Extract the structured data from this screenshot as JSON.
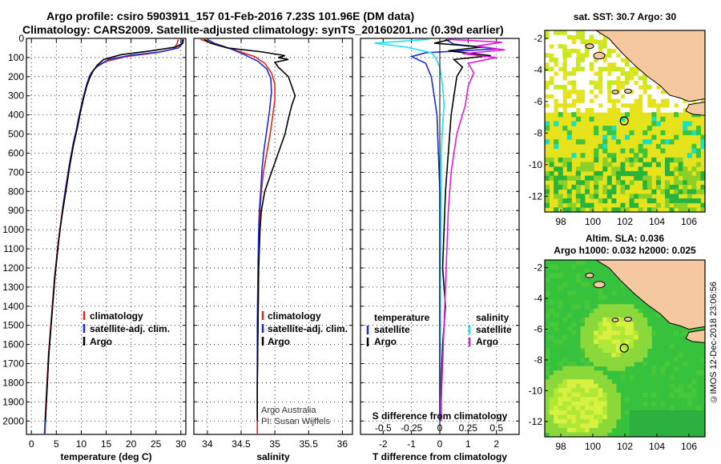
{
  "header": {
    "title_line1": "Argo profile: csiro 5903911_157 01-Feb-2016 7.23S 101.96E (DM data)",
    "title_line2": "Climatology: CARS2009. Satellite-adjusted climatology: synTS_20160201.nc (0.39d earlier)"
  },
  "colors": {
    "climatology": "#e8241a",
    "satellite": "#1a2cd8",
    "argo": "#000000",
    "sat_T": "#1a2cd8",
    "sat_S": "#19e4f0",
    "argo_S": "#e81ad6",
    "land": "#f5c8a0",
    "ocean_low": "#4cc84c",
    "ocean_mid": "#e8e21a"
  },
  "footer": {
    "credit": "©IMOS 12-Dec-2018 23:06:56"
  },
  "chart_data": [
    {
      "type": "line",
      "panel": "temperature",
      "xlabel": "temperature (deg C)",
      "ylabel": "",
      "xlim": [
        -1,
        31
      ],
      "ylim": [
        2070,
        0
      ],
      "xticks": [
        0,
        5,
        10,
        15,
        20,
        25,
        30
      ],
      "yticks": [
        0,
        100,
        200,
        300,
        400,
        500,
        600,
        700,
        800,
        900,
        1000,
        1100,
        1200,
        1300,
        1400,
        1500,
        1600,
        1700,
        1800,
        1900,
        2000
      ],
      "grid": "dotted",
      "legend": {
        "placement": "lower-middle",
        "entries": [
          "climatology",
          "satellite-adj. clim.",
          "Argo"
        ]
      },
      "series": [
        {
          "name": "climatology",
          "color": "#e8241a",
          "points": [
            [
              29.5,
              5
            ],
            [
              29.2,
              30
            ],
            [
              28.5,
              55
            ],
            [
              25,
              75
            ],
            [
              19,
              95
            ],
            [
              15,
              120
            ],
            [
              13,
              150
            ],
            [
              12,
              180
            ],
            [
              11.5,
              210
            ],
            [
              10.9,
              260
            ],
            [
              10.2,
              330
            ],
            [
              9.6,
              400
            ],
            [
              9.0,
              480
            ],
            [
              8.3,
              560
            ],
            [
              7.6,
              660
            ],
            [
              7.0,
              760
            ],
            [
              6.4,
              860
            ],
            [
              5.9,
              960
            ],
            [
              5.4,
              1060
            ],
            [
              5.0,
              1160
            ],
            [
              4.6,
              1260
            ],
            [
              4.3,
              1360
            ],
            [
              4.0,
              1460
            ],
            [
              3.7,
              1560
            ],
            [
              3.4,
              1660
            ],
            [
              3.2,
              1760
            ],
            [
              3.0,
              1860
            ],
            [
              2.8,
              1960
            ],
            [
              2.6,
              2070
            ]
          ]
        },
        {
          "name": "satellite-adj. clim.",
          "color": "#1a2cd8",
          "points": [
            [
              30.3,
              5
            ],
            [
              30.2,
              30
            ],
            [
              29.5,
              50
            ],
            [
              26,
              70
            ],
            [
              20,
              88
            ],
            [
              15.5,
              110
            ],
            [
              13.5,
              140
            ],
            [
              12.3,
              170
            ],
            [
              11.6,
              200
            ],
            [
              11.0,
              250
            ],
            [
              10.3,
              320
            ],
            [
              9.7,
              390
            ],
            [
              9.1,
              470
            ],
            [
              8.4,
              550
            ],
            [
              7.7,
              650
            ],
            [
              7.1,
              750
            ],
            [
              6.5,
              850
            ],
            [
              6.0,
              950
            ],
            [
              5.5,
              1050
            ],
            [
              5.1,
              1150
            ],
            [
              4.7,
              1250
            ],
            [
              4.4,
              1350
            ],
            [
              4.1,
              1450
            ],
            [
              3.8,
              1550
            ],
            [
              3.5,
              1650
            ],
            [
              3.3,
              1750
            ],
            [
              3.1,
              1850
            ],
            [
              2.9,
              1950
            ],
            [
              2.7,
              2070
            ]
          ]
        },
        {
          "name": "Argo",
          "color": "#000000",
          "points": [
            [
              30.5,
              5
            ],
            [
              30.4,
              25
            ],
            [
              29,
              45
            ],
            [
              24,
              65
            ],
            [
              18,
              85
            ],
            [
              14.5,
              110
            ],
            [
              13.2,
              140
            ],
            [
              12.4,
              170
            ],
            [
              11.8,
              200
            ],
            [
              11.1,
              250
            ],
            [
              10.4,
              320
            ],
            [
              9.8,
              390
            ],
            [
              9.2,
              470
            ],
            [
              8.5,
              550
            ],
            [
              7.8,
              650
            ],
            [
              7.2,
              750
            ],
            [
              6.6,
              850
            ],
            [
              6.0,
              950
            ],
            [
              5.5,
              1050
            ],
            [
              5.1,
              1150
            ],
            [
              4.7,
              1250
            ],
            [
              4.4,
              1350
            ],
            [
              4.1,
              1450
            ],
            [
              3.8,
              1550
            ],
            [
              3.5,
              1650
            ],
            [
              3.3,
              1750
            ],
            [
              3.1,
              1850
            ],
            [
              2.9,
              1950
            ],
            [
              2.8,
              2000
            ]
          ]
        }
      ]
    },
    {
      "type": "line",
      "panel": "salinity",
      "xlabel": "salinity",
      "ylabel": "",
      "xlim": [
        33.8,
        36.15
      ],
      "ylim": [
        2070,
        0
      ],
      "xticks": [
        34,
        34.5,
        35,
        35.5,
        36
      ],
      "xticklabels": [
        "34",
        "34.5",
        "35",
        "35.5",
        "36"
      ],
      "grid": "dotted",
      "legend": {
        "placement": "lower-right",
        "entries": [
          "climatology",
          "satellite-adj. clim.",
          "Argo"
        ]
      },
      "annotation": [
        "Argo Australia",
        "PI: Susan Wijffels"
      ],
      "series": [
        {
          "name": "climatology",
          "color": "#e8241a",
          "points": [
            [
              33.9,
              5
            ],
            [
              34.1,
              30
            ],
            [
              34.4,
              60
            ],
            [
              34.7,
              95
            ],
            [
              34.85,
              130
            ],
            [
              34.95,
              180
            ],
            [
              35.0,
              240
            ],
            [
              35.0,
              320
            ],
            [
              34.97,
              400
            ],
            [
              34.93,
              500
            ],
            [
              34.88,
              600
            ],
            [
              34.83,
              700
            ],
            [
              34.8,
              800
            ],
            [
              34.78,
              900
            ],
            [
              34.77,
              1000
            ],
            [
              34.76,
              1200
            ],
            [
              34.75,
              1500
            ],
            [
              34.74,
              1800
            ],
            [
              34.74,
              2070
            ]
          ]
        },
        {
          "name": "satellite-adj. clim.",
          "color": "#1a2cd8",
          "points": [
            [
              34.0,
              5
            ],
            [
              34.1,
              25
            ],
            [
              34.35,
              55
            ],
            [
              34.55,
              85
            ],
            [
              34.75,
              120
            ],
            [
              34.88,
              160
            ],
            [
              34.94,
              210
            ],
            [
              34.95,
              280
            ],
            [
              34.92,
              380
            ],
            [
              34.88,
              480
            ],
            [
              34.84,
              580
            ],
            [
              34.81,
              680
            ],
            [
              34.79,
              800
            ],
            [
              34.77,
              900
            ],
            [
              34.76,
              1000
            ],
            [
              34.75,
              1200
            ],
            [
              34.74,
              1500
            ],
            [
              34.74,
              1800
            ],
            [
              34.74,
              1980
            ]
          ]
        },
        {
          "name": "Argo",
          "color": "#000000",
          "points": [
            [
              33.95,
              5
            ],
            [
              34.05,
              25
            ],
            [
              34.3,
              50
            ],
            [
              34.8,
              70
            ],
            [
              35.15,
              90
            ],
            [
              35.05,
              100
            ],
            [
              35.2,
              110
            ],
            [
              35.0,
              125
            ],
            [
              35.05,
              150
            ],
            [
              35.2,
              200
            ],
            [
              35.25,
              250
            ],
            [
              35.3,
              300
            ],
            [
              35.25,
              350
            ],
            [
              35.2,
              420
            ],
            [
              35.15,
              500
            ],
            [
              35.05,
              600
            ],
            [
              34.95,
              700
            ],
            [
              34.85,
              800
            ],
            [
              34.8,
              900
            ],
            [
              34.78,
              1000
            ],
            [
              34.76,
              1200
            ],
            [
              34.75,
              1500
            ],
            [
              34.74,
              1800
            ],
            [
              34.74,
              2000
            ]
          ]
        }
      ]
    },
    {
      "type": "line",
      "panel": "difference",
      "xlabel": "T difference from climatology",
      "ylabel": "",
      "xlim": [
        -2.8,
        2.8
      ],
      "ylim": [
        2070,
        0
      ],
      "xticks": [
        -2,
        -1,
        0,
        1,
        2
      ],
      "x2label": "S difference from climatology",
      "x2ticks": [
        -0.5,
        -0.25,
        0,
        0.25,
        0.5
      ],
      "x2ticklabels": [
        "-0.5",
        "-0.25",
        "0",
        "0.25",
        "0.5"
      ],
      "grid": "dotted",
      "legend_T": {
        "title": "temperature",
        "entries": [
          "satellite",
          "Argo"
        ]
      },
      "legend_S": {
        "title": "salinity",
        "entries": [
          "satellite",
          "Argo"
        ]
      },
      "series": [
        {
          "name": "satellite",
          "color": "#1a2cd8",
          "points": [
            [
              0.2,
              5
            ],
            [
              0.5,
              30
            ],
            [
              2.0,
              55
            ],
            [
              -0.5,
              75
            ],
            [
              -1.0,
              95
            ],
            [
              -0.5,
              130
            ],
            [
              -0.3,
              200
            ],
            [
              -0.2,
              300
            ],
            [
              -0.1,
              400
            ],
            [
              -0.05,
              600
            ],
            [
              0,
              800
            ],
            [
              0,
              1200
            ],
            [
              0,
              1600
            ],
            [
              0,
              2000
            ]
          ]
        },
        {
          "name": "Argo",
          "color": "#000000",
          "points": [
            [
              0.4,
              5
            ],
            [
              -0.2,
              25
            ],
            [
              1.5,
              45
            ],
            [
              0.3,
              65
            ],
            [
              1.8,
              90
            ],
            [
              0.5,
              110
            ],
            [
              0.8,
              150
            ],
            [
              0.6,
              200
            ],
            [
              0.5,
              300
            ],
            [
              0.4,
              400
            ],
            [
              0.3,
              600
            ],
            [
              0.2,
              800
            ],
            [
              0.15,
              1000
            ],
            [
              0.1,
              1200
            ],
            [
              0.2,
              1400
            ],
            [
              0.1,
              1600
            ],
            [
              0.05,
              1800
            ],
            [
              0.05,
              2000
            ]
          ]
        },
        {
          "name": "satellite",
          "color": "#19e4f0",
          "points": [
            [
              -0.4,
              5
            ],
            [
              -2.3,
              25
            ],
            [
              -1.2,
              45
            ],
            [
              -0.3,
              75
            ],
            [
              -0.15,
              100
            ],
            [
              0,
              150
            ],
            [
              0.1,
              250
            ],
            [
              0.15,
              350
            ],
            [
              0.1,
              450
            ],
            [
              0.05,
              600
            ],
            [
              0.05,
              800
            ],
            [
              0.03,
              1000
            ],
            [
              0.02,
              1200
            ],
            [
              0.02,
              1600
            ],
            [
              0,
              2000
            ]
          ]
        },
        {
          "name": "Argo",
          "color": "#e81ad6",
          "points": [
            [
              0.3,
              5
            ],
            [
              2.2,
              20
            ],
            [
              1.3,
              40
            ],
            [
              2.3,
              60
            ],
            [
              0.8,
              80
            ],
            [
              2.0,
              100
            ],
            [
              1.0,
              130
            ],
            [
              1.2,
              180
            ],
            [
              1.0,
              250
            ],
            [
              0.9,
              350
            ],
            [
              0.6,
              500
            ],
            [
              0.4,
              700
            ],
            [
              0.3,
              900
            ],
            [
              0.25,
              1100
            ],
            [
              0.2,
              1300
            ],
            [
              0.15,
              1500
            ],
            [
              0.1,
              1700
            ],
            [
              0.05,
              1900
            ],
            [
              0.05,
              2000
            ]
          ]
        }
      ]
    },
    {
      "type": "heatmap",
      "panel": "map_sst",
      "title": "sat. SST: 30.7  Argo: 30",
      "xlim": [
        97,
        107
      ],
      "ylim": [
        -13,
        -1.5
      ],
      "xticks": [
        98,
        100,
        102,
        104,
        106
      ],
      "yticks": [
        -2,
        -4,
        -6,
        -8,
        -10,
        -12
      ],
      "marker": {
        "lon": 101.96,
        "lat": -7.23
      }
    },
    {
      "type": "heatmap",
      "panel": "map_sla",
      "title": "Altim. SLA: 0.036",
      "subtitle": "Argo h1000: 0.032  h2000: 0.025",
      "xlim": [
        97,
        107
      ],
      "ylim": [
        -13,
        -1.5
      ],
      "xticks": [
        98,
        100,
        102,
        104,
        106
      ],
      "yticks": [
        -2,
        -4,
        -6,
        -8,
        -10,
        -12
      ],
      "marker": {
        "lon": 101.96,
        "lat": -7.23
      }
    }
  ]
}
